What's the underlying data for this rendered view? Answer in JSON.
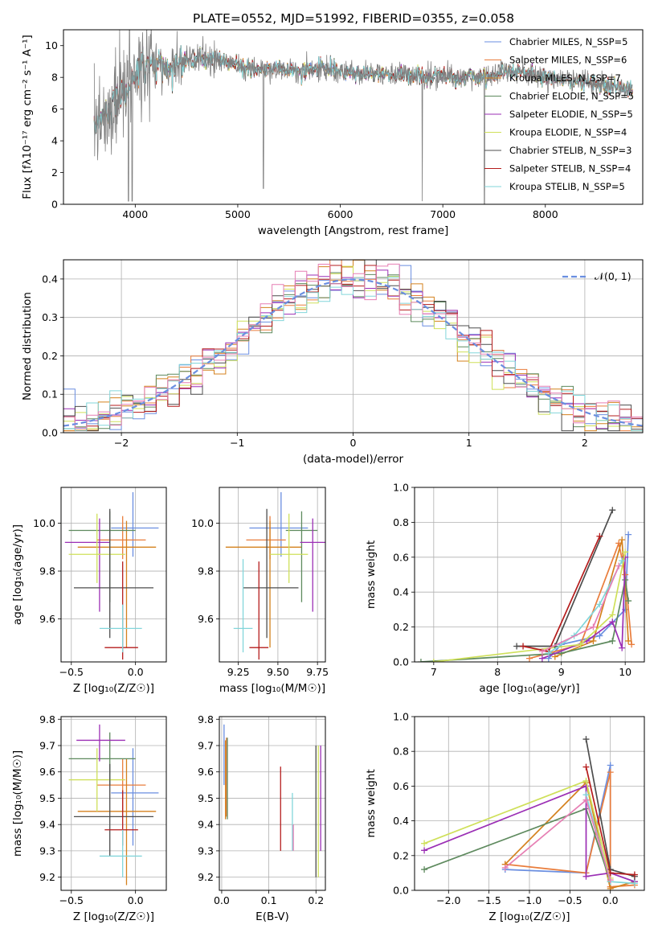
{
  "colors": [
    "#6a8ee0",
    "#e97d3c",
    "#d4811e",
    "#5e8a5e",
    "#9b2fb5",
    "#cfe05a",
    "#4d4d4d",
    "#b51c1c",
    "#82d6da",
    "#e67fb4"
  ],
  "chart_data": [
    {
      "id": "spectrum",
      "type": "line",
      "title": "PLATE=0552, MJD=51992, FIBERID=0355, z=0.058",
      "xlabel": "wavelength [Angstrom, rest frame]",
      "ylabel": "Flux [fλ10⁻¹⁷ erg cm⁻² s⁻¹ A⁻¹]",
      "xlim": [
        3300,
        8950
      ],
      "ylim": [
        0,
        11
      ],
      "xticks": [
        "4000",
        "5000",
        "6000",
        "7000",
        "8000"
      ],
      "yticks": [
        "0",
        "2",
        "4",
        "6",
        "8",
        "10"
      ],
      "grid": false,
      "legend_position": "top-right",
      "legend": [
        "Chabrier MILES, N_SSP=5",
        "Salpeter MILES, N_SSP=6",
        "Kroupa MILES, N_SSP=7",
        "Chabrier ELODIE, N_SSP=5",
        "Salpeter ELODIE, N_SSP=5",
        "Kroupa ELODIE, N_SSP=4",
        "Chabrier STELIB, N_SSP=3",
        "Salpeter STELIB, N_SSP=4",
        "Kroupa STELIB, N_SSP=5"
      ],
      "legend_colors": [
        "#6a8ee0",
        "#e97d3c",
        "#d4811e",
        "#5e8a5e",
        "#9b2fb5",
        "#cfe05a",
        "#4d4d4d",
        "#b51c1c",
        "#82d6da"
      ],
      "continuum": [
        [
          3600,
          5.0
        ],
        [
          3700,
          5.6
        ],
        [
          3800,
          6.6
        ],
        [
          3900,
          7.0
        ],
        [
          4000,
          8.3
        ],
        [
          4100,
          8.6
        ],
        [
          4200,
          8.9
        ],
        [
          4300,
          8.5
        ],
        [
          4400,
          8.7
        ],
        [
          4500,
          9.0
        ],
        [
          4600,
          9.2
        ],
        [
          4800,
          9.1
        ],
        [
          5000,
          8.7
        ],
        [
          5200,
          8.5
        ],
        [
          5400,
          8.5
        ],
        [
          5600,
          8.4
        ],
        [
          5800,
          8.6
        ],
        [
          6000,
          8.4
        ],
        [
          6200,
          8.2
        ],
        [
          6400,
          8.2
        ],
        [
          6600,
          8.1
        ],
        [
          6800,
          8.0
        ],
        [
          7000,
          8.1
        ],
        [
          7200,
          8.0
        ],
        [
          7400,
          8.05
        ],
        [
          7600,
          8.3
        ],
        [
          7800,
          8.3
        ],
        [
          8000,
          8.0
        ],
        [
          8200,
          7.9
        ],
        [
          8400,
          7.7
        ],
        [
          8600,
          7.5
        ],
        [
          8800,
          7.3
        ]
      ]
    },
    {
      "id": "residuals",
      "type": "histogram",
      "xlabel": "(data-model)/error",
      "ylabel": "Normed distribution",
      "xlim": [
        -2.5,
        2.5
      ],
      "ylim": [
        0,
        0.45
      ],
      "xticks": [
        "−2",
        "−1",
        "0",
        "1",
        "2"
      ],
      "yticks": [
        "0.0",
        "0.1",
        "0.2",
        "0.3",
        "0.4"
      ],
      "grid": true,
      "legend_position": "top-right",
      "legend": [
        "𝒩(0, 1)"
      ],
      "reference_curve": "normal(0,1)",
      "bin_width": 0.1
    },
    {
      "id": "age-vs-Z",
      "type": "scatter",
      "xlabel": "Z [log₁₀(Z/Z☉)]",
      "ylabel": "age  [log₁₀(age/yr)]",
      "xlim": [
        -0.58,
        0.24
      ],
      "ylim": [
        9.42,
        10.15
      ],
      "xticks": [
        "−0.5",
        "0.0"
      ],
      "yticks": [
        "9.6",
        "9.8",
        "10.0"
      ],
      "grid": true,
      "points": [
        {
          "x": -0.02,
          "y": 9.98,
          "xerr": [
            0.17,
            0.2
          ],
          "yerr": [
            0.12,
            0.15
          ]
        },
        {
          "x": -0.1,
          "y": 9.93,
          "xerr": [
            0.2,
            0.18
          ],
          "yerr": [
            0.08,
            0.1
          ]
        },
        {
          "x": -0.07,
          "y": 9.9,
          "xerr": [
            0.38,
            0.23
          ],
          "yerr": [
            0.42,
            0.11
          ]
        },
        {
          "x": -0.2,
          "y": 9.97,
          "xerr": [
            0.32,
            0.2
          ],
          "yerr": [
            0.3,
            0.08
          ]
        },
        {
          "x": -0.28,
          "y": 9.92,
          "xerr": [
            0.27,
            0.08
          ],
          "yerr": [
            0.29,
            0.1
          ]
        },
        {
          "x": -0.3,
          "y": 9.87,
          "xerr": [
            0.22,
            0.22
          ],
          "yerr": [
            0.12,
            0.17
          ]
        },
        {
          "x": -0.2,
          "y": 9.73,
          "xerr": [
            0.28,
            0.34
          ],
          "yerr": [
            0.21,
            0.33
          ]
        },
        {
          "x": -0.1,
          "y": 9.48,
          "xerr": [
            0.14,
            0.12
          ],
          "yerr": [
            0.05,
            0.36
          ]
        },
        {
          "x": -0.1,
          "y": 9.56,
          "xerr": [
            0.18,
            0.15
          ],
          "yerr": [
            0.1,
            0.1
          ]
        }
      ]
    },
    {
      "id": "age-vs-mass",
      "type": "scatter",
      "xlabel": "mass [log₁₀(M/M☉)]",
      "ylabel": "",
      "xlim": [
        9.13,
        9.8
      ],
      "ylim": [
        9.42,
        10.15
      ],
      "xticks": [
        "9.25",
        "9.50",
        "9.75"
      ],
      "yticks": [
        "9.6",
        "9.8",
        "10.0"
      ],
      "grid": true,
      "points": [
        {
          "x": 9.52,
          "y": 9.98,
          "xerr": [
            0.2,
            0.17
          ],
          "yerr": [
            0.12,
            0.15
          ]
        },
        {
          "x": 9.45,
          "y": 9.93,
          "xerr": [
            0.15,
            0.1
          ],
          "yerr": [
            0.08,
            0.1
          ]
        },
        {
          "x": 9.45,
          "y": 9.9,
          "xerr": [
            0.28,
            0.2
          ],
          "yerr": [
            0.42,
            0.11
          ]
        },
        {
          "x": 9.65,
          "y": 9.97,
          "xerr": [
            0.1,
            0.1
          ],
          "yerr": [
            0.3,
            0.08
          ]
        },
        {
          "x": 9.72,
          "y": 9.92,
          "xerr": [
            0.08,
            0.08
          ],
          "yerr": [
            0.29,
            0.1
          ]
        },
        {
          "x": 9.57,
          "y": 9.87,
          "xerr": [
            0.12,
            0.12
          ],
          "yerr": [
            0.12,
            0.17
          ]
        },
        {
          "x": 9.43,
          "y": 9.73,
          "xerr": [
            0.15,
            0.2
          ],
          "yerr": [
            0.21,
            0.33
          ]
        },
        {
          "x": 9.38,
          "y": 9.48,
          "xerr": [
            0.06,
            0.06
          ],
          "yerr": [
            0.05,
            0.36
          ]
        },
        {
          "x": 9.28,
          "y": 9.56,
          "xerr": [
            0.06,
            0.06
          ],
          "yerr": [
            0.1,
            0.29
          ]
        }
      ]
    },
    {
      "id": "weight-vs-age",
      "type": "line",
      "xlabel": "age  [log₁₀(age/yr)]",
      "ylabel": "mass weight",
      "xlim": [
        6.7,
        10.3
      ],
      "ylim": [
        0,
        1.0
      ],
      "xticks": [
        "7",
        "8",
        "9",
        "10"
      ],
      "yticks": [
        "0.0",
        "0.2",
        "0.4",
        "0.6",
        "0.8",
        "1.0"
      ],
      "grid": true,
      "series": [
        {
          "values": [
            [
              8.8,
              0.02
            ],
            [
              9.0,
              0.1
            ],
            [
              9.6,
              0.15
            ],
            [
              10.0,
              0.3
            ],
            [
              10.05,
              0.73
            ]
          ]
        },
        {
          "values": [
            [
              8.5,
              0.02
            ],
            [
              9.3,
              0.1
            ],
            [
              9.9,
              0.68
            ],
            [
              10.0,
              0.5
            ],
            [
              10.1,
              0.1
            ]
          ]
        },
        {
          "values": [
            [
              8.9,
              0.03
            ],
            [
              9.5,
              0.12
            ],
            [
              9.95,
              0.7
            ],
            [
              10.05,
              0.12
            ]
          ]
        },
        {
          "values": [
            [
              6.8,
              0.0
            ],
            [
              9.0,
              0.05
            ],
            [
              9.8,
              0.12
            ],
            [
              10.0,
              0.47
            ],
            [
              10.05,
              0.35
            ]
          ]
        },
        {
          "values": [
            [
              8.7,
              0.02
            ],
            [
              9.4,
              0.12
            ],
            [
              9.8,
              0.23
            ],
            [
              9.95,
              0.08
            ],
            [
              10.0,
              0.6
            ]
          ]
        },
        {
          "values": [
            [
              7.0,
              0.0
            ],
            [
              9.3,
              0.1
            ],
            [
              9.8,
              0.27
            ],
            [
              10.0,
              0.63
            ]
          ]
        },
        {
          "values": [
            [
              8.3,
              0.09
            ],
            [
              8.9,
              0.09
            ],
            [
              9.8,
              0.87
            ]
          ]
        },
        {
          "values": [
            [
              8.4,
              0.09
            ],
            [
              8.8,
              0.06
            ],
            [
              9.6,
              0.72
            ]
          ]
        },
        {
          "values": [
            [
              8.8,
              0.05
            ],
            [
              9.2,
              0.15
            ],
            [
              9.6,
              0.33
            ],
            [
              9.95,
              0.58
            ]
          ]
        },
        {
          "values": [
            [
              8.7,
              0.06
            ],
            [
              9.5,
              0.2
            ],
            [
              9.9,
              0.55
            ]
          ]
        }
      ]
    },
    {
      "id": "mass-vs-Z",
      "type": "scatter",
      "xlabel": "Z [log₁₀(Z/Z☉)]",
      "ylabel": "mass [log₁₀(M/M☉)]",
      "xlim": [
        -0.58,
        0.24
      ],
      "ylim": [
        9.15,
        9.81
      ],
      "xticks": [
        "−0.5",
        "0.0"
      ],
      "yticks": [
        "9.2",
        "9.3",
        "9.4",
        "9.5",
        "9.6",
        "9.7",
        "9.8"
      ],
      "grid": true,
      "points": [
        {
          "x": -0.02,
          "y": 9.52,
          "xerr": [
            0.17,
            0.2
          ],
          "yerr": [
            0.2,
            0.17
          ]
        },
        {
          "x": -0.1,
          "y": 9.55,
          "xerr": [
            0.2,
            0.18
          ],
          "yerr": [
            0.1,
            0.1
          ]
        },
        {
          "x": -0.07,
          "y": 9.45,
          "xerr": [
            0.38,
            0.23
          ],
          "yerr": [
            0.28,
            0.2
          ]
        },
        {
          "x": -0.2,
          "y": 9.65,
          "xerr": [
            0.32,
            0.2
          ],
          "yerr": [
            0.1,
            0.1
          ]
        },
        {
          "x": -0.28,
          "y": 9.72,
          "xerr": [
            0.18,
            0.2
          ],
          "yerr": [
            0.08,
            0.06
          ]
        },
        {
          "x": -0.3,
          "y": 9.57,
          "xerr": [
            0.22,
            0.22
          ],
          "yerr": [
            0.12,
            0.12
          ]
        },
        {
          "x": -0.2,
          "y": 9.43,
          "xerr": [
            0.28,
            0.34
          ],
          "yerr": [
            0.15,
            0.2
          ]
        },
        {
          "x": -0.1,
          "y": 9.38,
          "xerr": [
            0.14,
            0.12
          ],
          "yerr": [
            0.06,
            0.15
          ]
        },
        {
          "x": -0.1,
          "y": 9.28,
          "xerr": [
            0.18,
            0.15
          ],
          "yerr": [
            0.08,
            0.1
          ]
        }
      ]
    },
    {
      "id": "mass-vs-ebv",
      "type": "scatter",
      "xlabel": "E(B-V)",
      "ylabel": "",
      "xlim": [
        -0.005,
        0.22
      ],
      "ylim": [
        9.15,
        9.81
      ],
      "xticks": [
        "0.0",
        "0.1",
        "0.2"
      ],
      "yticks": [
        "9.2",
        "9.3",
        "9.4",
        "9.5",
        "9.6",
        "9.7",
        "9.8"
      ],
      "grid": true,
      "points": [
        {
          "x": 0.005,
          "y": 9.6,
          "yerr": [
            0.05,
            0.18
          ]
        },
        {
          "x": 0.01,
          "y": 9.55,
          "yerr": [
            0.12,
            0.18
          ]
        },
        {
          "x": 0.008,
          "y": 9.5,
          "yerr": [
            0.08,
            0.22
          ]
        },
        {
          "x": 0.012,
          "y": 9.6,
          "yerr": [
            0.18,
            0.13
          ]
        },
        {
          "x": 0.21,
          "y": 9.45,
          "yerr": [
            0.15,
            0.25
          ]
        },
        {
          "x": 0.205,
          "y": 9.42,
          "yerr": [
            0.22,
            0.28
          ]
        },
        {
          "x": 0.2,
          "y": 9.5,
          "yerr": [
            0.3,
            0.2
          ]
        },
        {
          "x": 0.125,
          "y": 9.45,
          "yerr": [
            0.15,
            0.17
          ]
        },
        {
          "x": 0.15,
          "y": 9.42,
          "yerr": [
            0.12,
            0.1
          ]
        },
        {
          "x": 0.152,
          "y": 9.35,
          "yerr": [
            0.05,
            0.05
          ]
        }
      ]
    },
    {
      "id": "weight-vs-Z",
      "type": "line",
      "xlabel": "Z [log₁₀(Z/Z☉)]",
      "ylabel": "mass weight",
      "xlim": [
        -2.42,
        0.42
      ],
      "ylim": [
        0,
        1.0
      ],
      "xticks": [
        "−2.0",
        "−1.5",
        "−1.0",
        "−0.5",
        "0.0"
      ],
      "yticks": [
        "0.0",
        "0.2",
        "0.4",
        "0.6",
        "0.8",
        "1.0"
      ],
      "grid": true,
      "series": [
        {
          "values": [
            [
              -1.3,
              0.12
            ],
            [
              -0.3,
              0.1
            ],
            [
              0.0,
              0.72
            ],
            [
              0.0,
              0.1
            ],
            [
              0.3,
              0.05
            ]
          ]
        },
        {
          "values": [
            [
              -1.3,
              0.15
            ],
            [
              -0.3,
              0.1
            ],
            [
              0.0,
              0.68
            ],
            [
              0.0,
              0.02
            ],
            [
              0.3,
              0.03
            ]
          ]
        },
        {
          "values": [
            [
              -1.3,
              0.15
            ],
            [
              -0.3,
              0.62
            ],
            [
              0.0,
              0.01
            ],
            [
              0.3,
              0.05
            ]
          ]
        },
        {
          "values": [
            [
              -2.3,
              0.12
            ],
            [
              -0.3,
              0.47
            ],
            [
              0.0,
              0.05
            ]
          ]
        },
        {
          "values": [
            [
              -2.3,
              0.23
            ],
            [
              -0.3,
              0.6
            ],
            [
              -0.3,
              0.08
            ],
            [
              0.0,
              0.1
            ],
            [
              0.3,
              0.05
            ]
          ]
        },
        {
          "values": [
            [
              -2.3,
              0.27
            ],
            [
              -0.3,
              0.63
            ],
            [
              0.0,
              0.07
            ]
          ]
        },
        {
          "values": [
            [
              -0.3,
              0.87
            ],
            [
              0.0,
              0.12
            ],
            [
              0.3,
              0.08
            ]
          ]
        },
        {
          "values": [
            [
              -0.3,
              0.71
            ],
            [
              0.0,
              0.1
            ],
            [
              0.3,
              0.09
            ]
          ]
        },
        {
          "values": [
            [
              -0.3,
              0.55
            ],
            [
              0.0,
              0.05
            ],
            [
              0.3,
              0.04
            ]
          ]
        },
        {
          "values": [
            [
              -1.3,
              0.13
            ],
            [
              -0.3,
              0.52
            ],
            [
              0.0,
              0.06
            ]
          ]
        }
      ]
    }
  ]
}
